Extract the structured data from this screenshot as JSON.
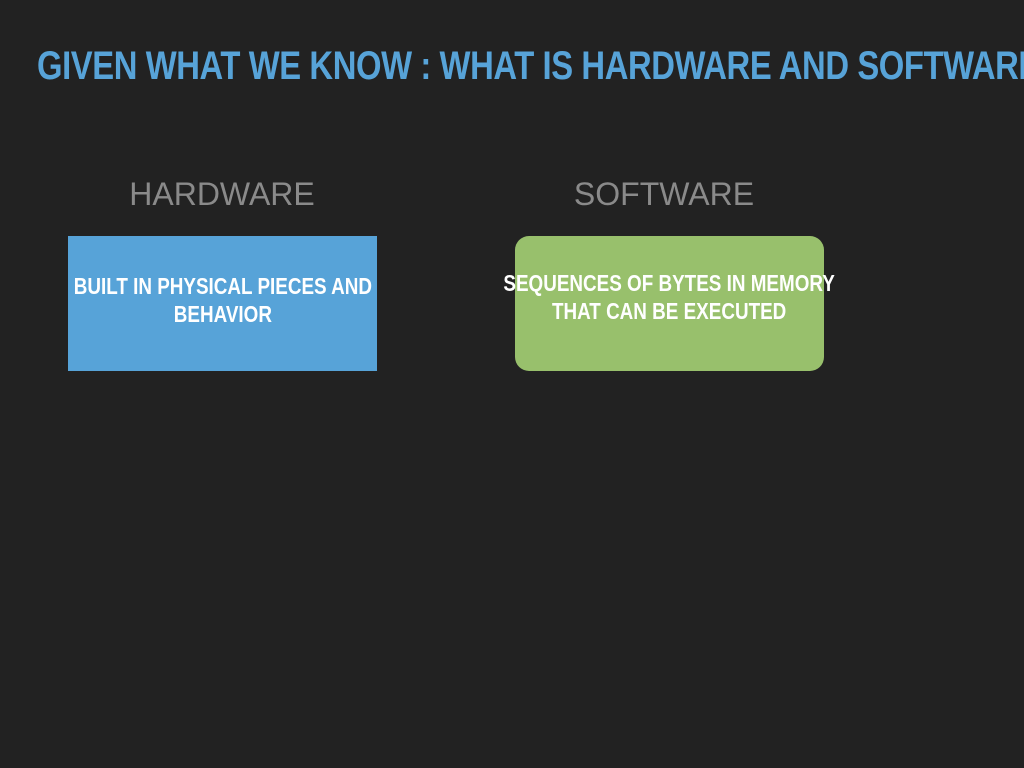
{
  "slide": {
    "title": "GIVEN WHAT WE KNOW : WHAT IS HARDWARE AND SOFTWARE?",
    "columns": [
      {
        "heading": "HARDWARE",
        "box_lines": [
          "BUILT IN PHYSICAL PIECES AND",
          "BEHAVIOR"
        ]
      },
      {
        "heading": "SOFTWARE",
        "box_lines": [
          "SEQUENCES OF BYTES IN MEMORY",
          "THAT CAN BE EXECUTED"
        ]
      }
    ]
  },
  "colors": {
    "background": "#222222",
    "title": "#57a3d8",
    "heading": "#8a8a8a",
    "hardware_box": "#57a3d8",
    "software_box": "#98c06c",
    "box_text": "#ffffff"
  }
}
